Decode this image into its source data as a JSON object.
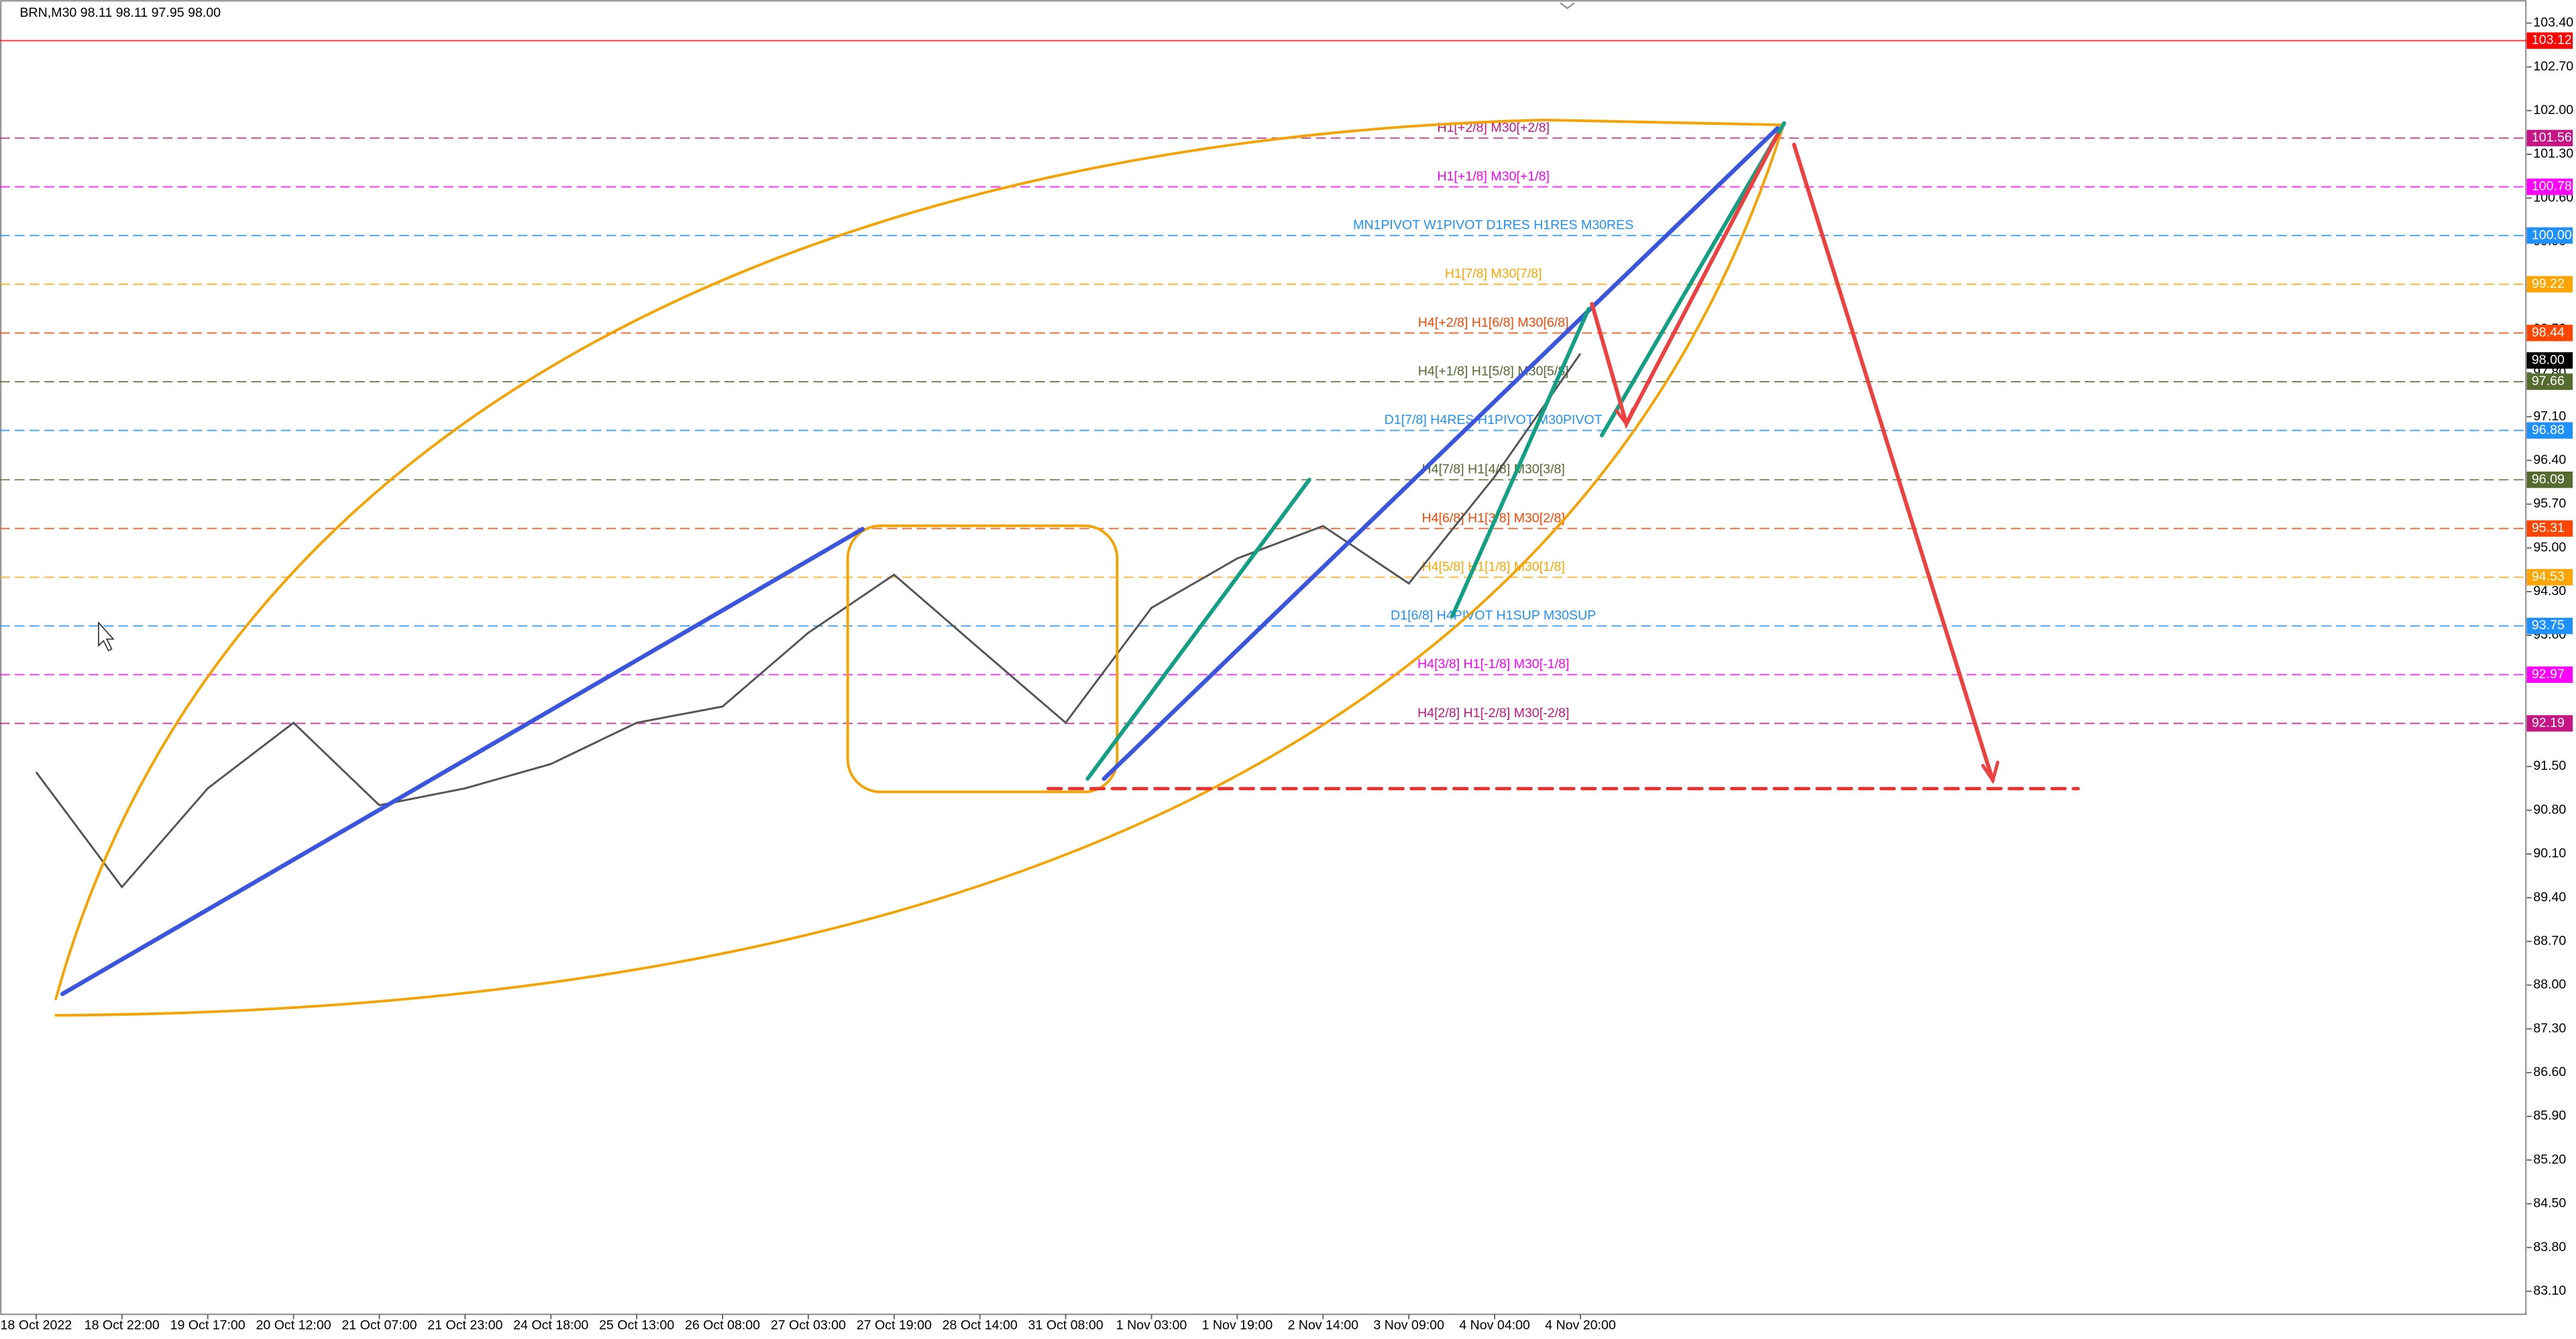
{
  "chart_data": {
    "type": "line",
    "title": "BRN,M30  98.11 98.11 97.95 98.00",
    "categories": [
      "18 Oct 2022",
      "18 Oct 22:00",
      "19 Oct 17:00",
      "20 Oct 12:00",
      "21 Oct 07:00",
      "21 Oct 23:00",
      "24 Oct 18:00",
      "25 Oct 13:00",
      "26 Oct 08:00",
      "27 Oct 03:00",
      "27 Oct 19:00",
      "28 Oct 14:00",
      "31 Oct 08:00",
      "1 Nov 03:00",
      "1 Nov 19:00",
      "2 Nov 14:00",
      "3 Nov 09:00",
      "4 Nov 04:00",
      "4 Nov 20:00"
    ],
    "values": [
      91.41,
      89.57,
      91.15,
      92.2,
      90.88,
      91.15,
      91.54,
      92.2,
      92.46,
      93.64,
      94.57,
      93.38,
      92.2,
      94.04,
      94.83,
      95.35,
      94.43,
      96.14,
      98.11
    ],
    "color": "#555555",
    "ylim": [
      82.73,
      103.77
    ],
    "yticks": [
      {
        "value": 103.4,
        "label": "103.40"
      },
      {
        "value": 102.7,
        "label": "102.70"
      },
      {
        "value": 102,
        "label": "102.00"
      },
      {
        "value": 101.3,
        "label": "101.30"
      },
      {
        "value": 100.6,
        "label": "100.60"
      },
      {
        "value": 99.9,
        "label": "99.90"
      },
      {
        "value": 99.2,
        "label": "99.20"
      },
      {
        "value": 98.5,
        "label": "98.50"
      },
      {
        "value": 97.8,
        "label": "97.80"
      },
      {
        "value": 97.1,
        "label": "97.10"
      },
      {
        "value": 96.4,
        "label": "96.40"
      },
      {
        "value": 95.7,
        "label": "95.70"
      },
      {
        "value": 95,
        "label": "95.00"
      },
      {
        "value": 94.3,
        "label": "94.30"
      },
      {
        "value": 93.6,
        "label": "93.60"
      },
      {
        "value": 92.9,
        "label": "92.90"
      },
      {
        "value": 92.2,
        "label": "92.20"
      },
      {
        "value": 91.5,
        "label": "91.50"
      },
      {
        "value": 90.8,
        "label": "90.80"
      },
      {
        "value": 90.1,
        "label": "90.10"
      },
      {
        "value": 89.4,
        "label": "89.40"
      },
      {
        "value": 88.7,
        "label": "88.70"
      },
      {
        "value": 88,
        "label": "88.00"
      },
      {
        "value": 87.3,
        "label": "87.30"
      },
      {
        "value": 86.6,
        "label": "86.60"
      },
      {
        "value": 85.9,
        "label": "85.90"
      },
      {
        "value": 85.2,
        "label": "85.20"
      },
      {
        "value": 84.5,
        "label": "84.50"
      },
      {
        "value": 83.8,
        "label": "83.80"
      },
      {
        "value": 83.1,
        "label": "83.10"
      }
    ],
    "levels": [
      {
        "value": 103.12,
        "color": "#ff0000"
      },
      {
        "value": 101.56,
        "text": "H1[+2/8] M30[+2/8]",
        "color": "#c71585"
      },
      {
        "value": 100.78,
        "text": "H1[+1/8] M30[+1/8]",
        "color": "#ff00ff"
      },
      {
        "value": {
          "value": 100,
          "label": "100.00"
        },
        "text": "MN1PIVOT W1PIVOT D1RES H1RES M30RES",
        "color": "#1e90ff"
      },
      {
        "value": 99.22,
        "text": "H1[7/8] M30[7/8]",
        "color": "#ffa500"
      },
      {
        "value": 98.44,
        "text": "H4[+2/8] H1[6/8] M30[6/8]",
        "color": "#ff4500"
      },
      {
        "value": {
          "value": 98,
          "label": "98.00"
        },
        "color": "#000000"
      },
      {
        "value": 97.66,
        "text": "H4[+1/8] H1[5/8] M30[5/8]",
        "color": "#556b2f"
      },
      {
        "value": 96.88,
        "text": "D1[7/8] H4RES H1PIVOT M30PIVOT",
        "color": "#1e90ff"
      },
      {
        "value": 96.09,
        "text": "H4[7/8] H1[4/8] M30[3/8]",
        "color": "#556b2f"
      },
      {
        "value": 95.31,
        "text": "H4[6/8] H1[3/8] M30[2/8]",
        "color": "#ff4500"
      },
      {
        "value": 94.53,
        "text": "H4[5/8] H1[1/8] M30[1/8]",
        "color": "#ffa500"
      },
      {
        "value": 93.75,
        "text": "D1[6/8] H4PIVOT H1SUP M30SUP",
        "color": "#1e90ff"
      },
      {
        "value": 92.97,
        "text": "H4[3/8] H1[-1/8] M30[-1/8]",
        "color": "#ff00ff"
      },
      {
        "value": 92.19,
        "text": "H4[2/8] H1[-2/8] M30[-2/8]",
        "color": "#c71585"
      }
    ]
  }
}
